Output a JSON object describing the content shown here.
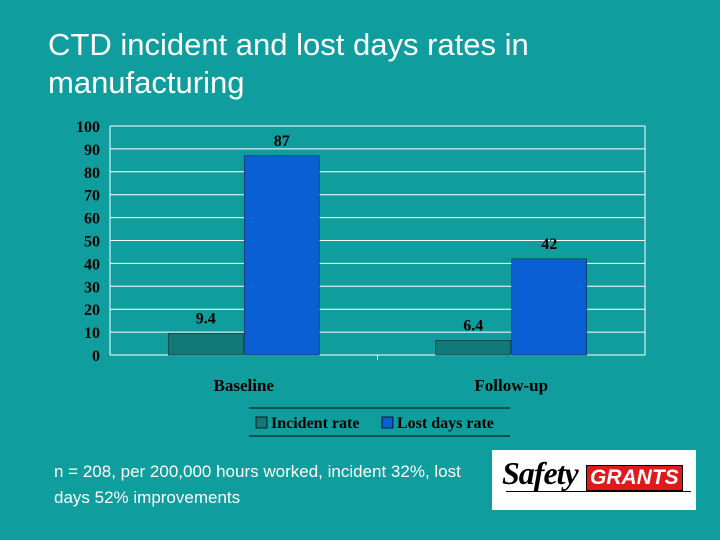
{
  "slide": {
    "title": "CTD incident and lost days rates in manufacturing",
    "footnote": "n = 208, per 200,000 hours worked, incident 32%, lost days 52% improvements",
    "background_color": "#0f9e9d"
  },
  "logo": {
    "text_part1": "Safety",
    "text_part2": "GRANTS"
  },
  "chart_data": {
    "type": "bar",
    "categories": [
      "Baseline",
      "Follow-up"
    ],
    "series": [
      {
        "name": "Incident rate",
        "values": [
          9.4,
          6.4
        ],
        "color": "#117a78"
      },
      {
        "name": "Lost days rate",
        "values": [
          87,
          42
        ],
        "color": "#0a5fd4"
      }
    ],
    "data_labels": [
      [
        "9.4",
        "6.4"
      ],
      [
        "87",
        "42"
      ]
    ],
    "ylim": [
      0,
      100
    ],
    "yticks": [
      0,
      10,
      20,
      30,
      40,
      50,
      60,
      70,
      80,
      90,
      100
    ],
    "grid": true,
    "legend_position": "bottom"
  }
}
